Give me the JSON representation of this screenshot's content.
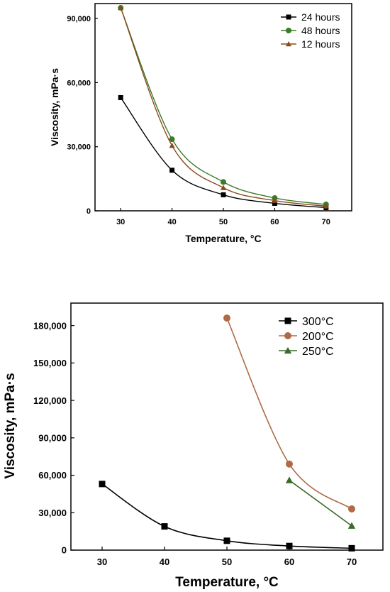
{
  "chart_data": [
    {
      "type": "line",
      "title": "",
      "xlabel": "Temperature, °C",
      "ylabel": "Viscosity, mPa·s",
      "xlim": [
        25,
        75
      ],
      "ylim": [
        0,
        97000
      ],
      "xticks": [
        30,
        40,
        50,
        60,
        70
      ],
      "yticks": [
        0,
        30000,
        60000,
        90000
      ],
      "ytick_labels": [
        "0",
        "30,000",
        "60,000",
        "90,000"
      ],
      "grid": false,
      "legend_position": "top-right",
      "series": [
        {
          "name": "24 hours",
          "marker": "square",
          "color": "#000000",
          "x": [
            30,
            40,
            50,
            60,
            70
          ],
          "y": [
            53000,
            19000,
            7500,
            3500,
            1500
          ]
        },
        {
          "name": "48 hours",
          "marker": "circle",
          "color": "#3d7a2a",
          "x": [
            30,
            40,
            50,
            60,
            70
          ],
          "y": [
            95000,
            33500,
            13500,
            6000,
            3000
          ]
        },
        {
          "name": "12 hours",
          "marker": "triangle",
          "color": "#8b4a1a",
          "x": [
            30,
            40,
            50,
            60,
            70
          ],
          "y": [
            95000,
            30500,
            10800,
            4800,
            2200
          ]
        }
      ]
    },
    {
      "type": "line",
      "title": "",
      "xlabel": "Temperature, °C",
      "ylabel": "Viscosity, mPa·s",
      "xlim": [
        25,
        75
      ],
      "ylim": [
        0,
        198000
      ],
      "xticks": [
        30,
        40,
        50,
        60,
        70
      ],
      "yticks": [
        0,
        30000,
        60000,
        90000,
        120000,
        150000,
        180000
      ],
      "ytick_labels": [
        "0",
        "30,000",
        "60,000",
        "90,000",
        "120,000",
        "150,000",
        "180,000"
      ],
      "grid": false,
      "legend_position": "top-right",
      "series": [
        {
          "name": "300°C",
          "marker": "square",
          "color": "#000000",
          "x": [
            30,
            40,
            50,
            60,
            70
          ],
          "y": [
            53000,
            19000,
            7500,
            3300,
            1500
          ]
        },
        {
          "name": "200°C",
          "marker": "circle",
          "color": "#b06a47",
          "x": [
            50,
            60,
            70
          ],
          "y": [
            186000,
            69000,
            33000
          ]
        },
        {
          "name": "250°C",
          "marker": "triangle",
          "color": "#3a6b2a",
          "x": [
            60,
            70
          ],
          "y": [
            56000,
            19500
          ]
        }
      ]
    }
  ]
}
